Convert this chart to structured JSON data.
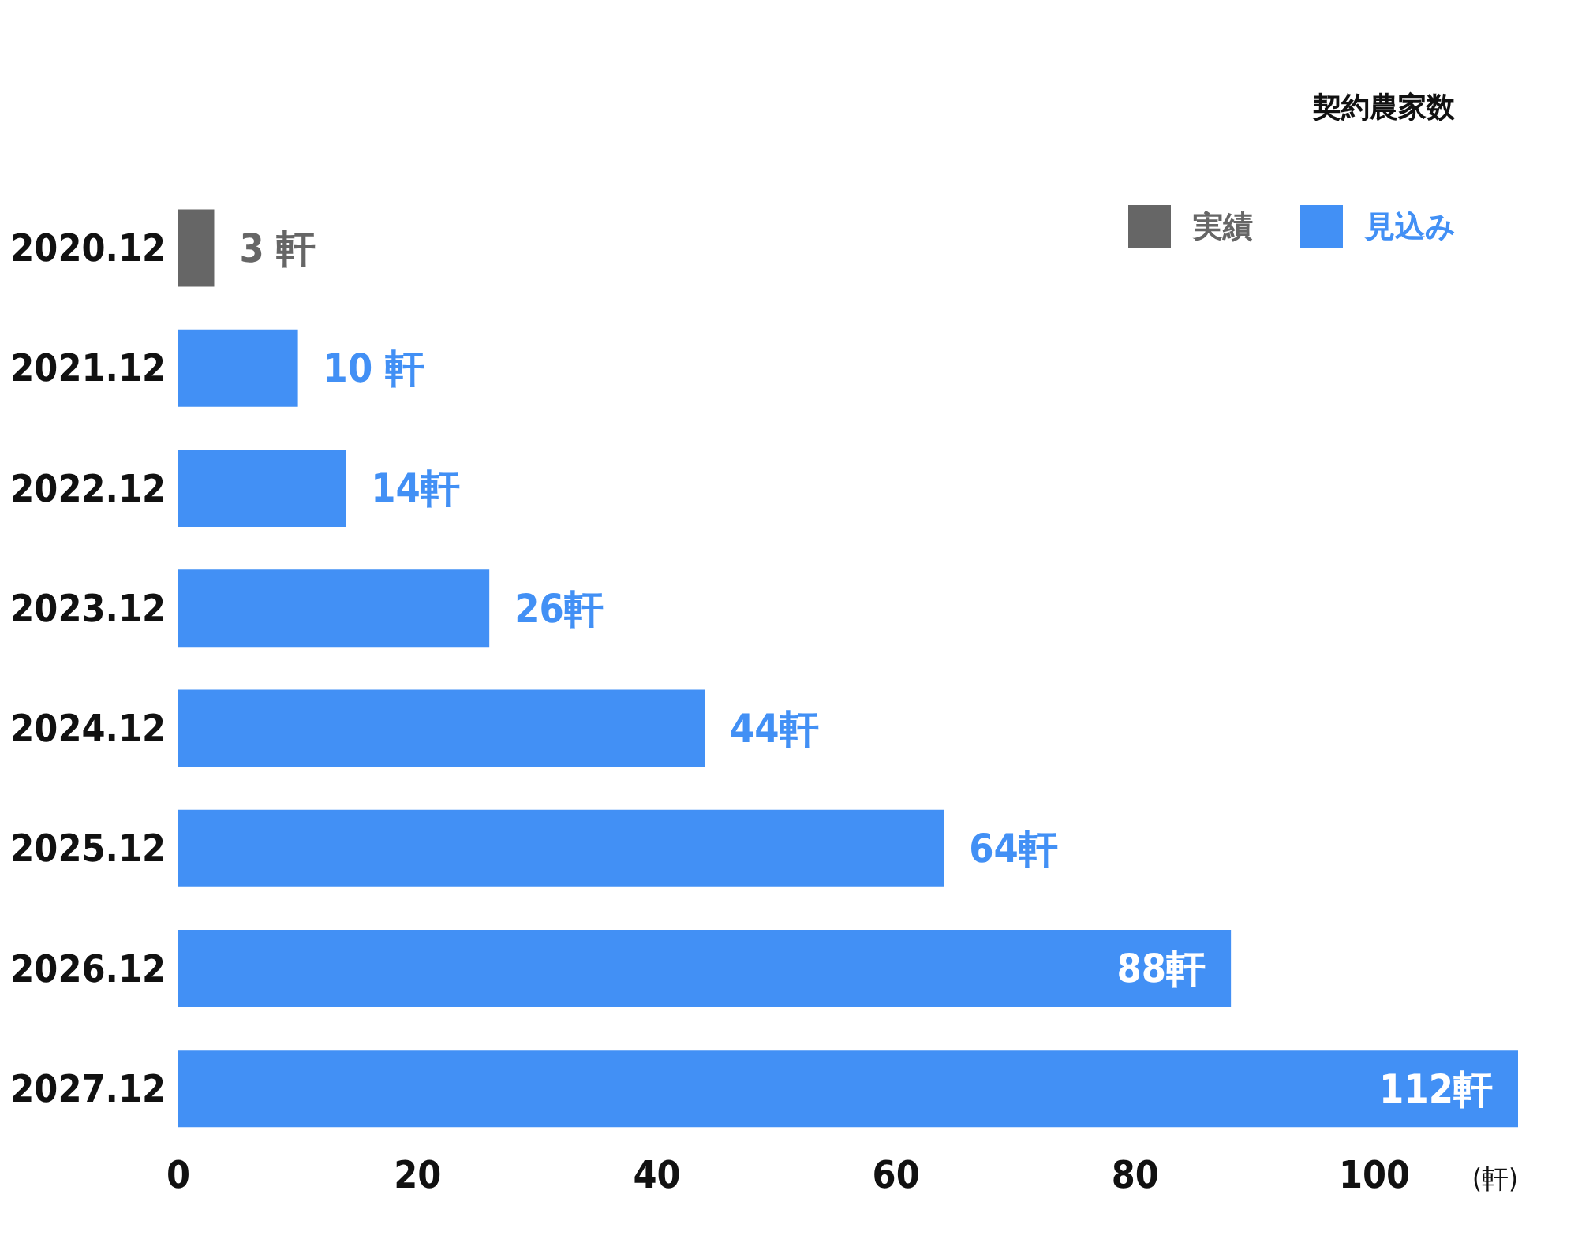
{
  "chart_data": {
    "type": "bar",
    "orientation": "horizontal",
    "stacked": true,
    "categories": [
      "2020.12",
      "2021.12",
      "2022.12",
      "2023.12",
      "2024.12",
      "2025.12",
      "2026.12",
      "2027.12"
    ],
    "series": [
      {
        "name": "実績",
        "color": "#666666",
        "values": [
          3,
          null,
          null,
          null,
          null,
          null,
          null,
          null
        ],
        "value_labels": [
          "3 軒",
          null,
          null,
          null,
          null,
          null,
          null,
          null
        ]
      },
      {
        "name": "見込み",
        "color": "#4290f5",
        "values": [
          null,
          10,
          14,
          26,
          44,
          64,
          88,
          112
        ],
        "value_labels": [
          null,
          "10 軒",
          "14軒",
          "26軒",
          "44軒",
          "64軒",
          "88軒",
          "112軒"
        ]
      }
    ],
    "xlim": [
      0,
      112
    ],
    "xticks": [
      0,
      20,
      40,
      60,
      80,
      100
    ],
    "xlabel": "(軒)",
    "legend": "top right",
    "legend_title": "契約農家数",
    "grid": false
  }
}
